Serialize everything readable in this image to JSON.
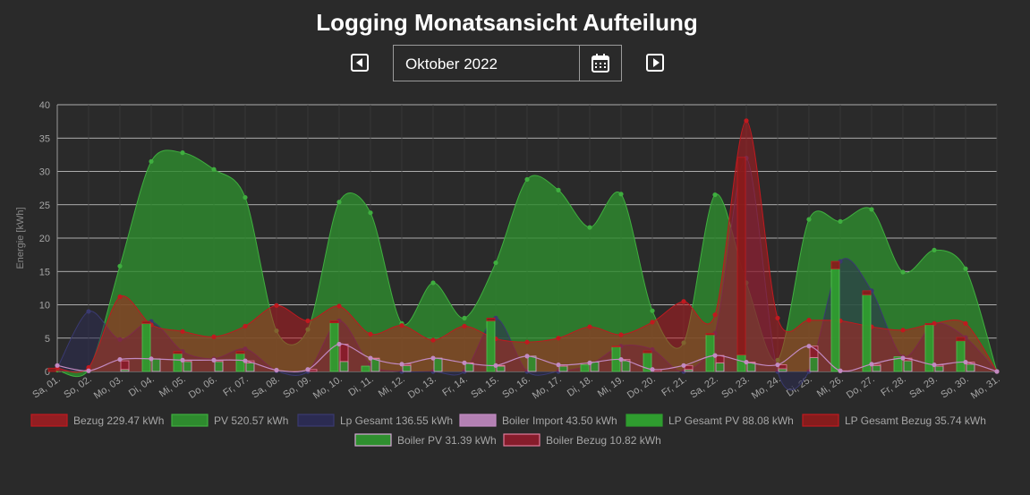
{
  "page": {
    "title": "Logging Monatsansicht Aufteilung"
  },
  "nav": {
    "month": "Oktober 2022",
    "prev_icon": "prev-arrow-icon",
    "next_icon": "next-arrow-icon",
    "calendar_icon": "calendar-icon"
  },
  "colors": {
    "background": "#2a2a2a",
    "bezug": "#c0191f",
    "pv": "#2e8b2e",
    "lp_gesamt": "#2b2b52",
    "boiler_import": "#c28ac2",
    "lp_gesamt_pv": "#2f9d2f",
    "lp_gesamt_bezug": "#8b1b1b",
    "boiler_pv": "#2f8f2f",
    "boiler_bezug": "#8b1b2b"
  },
  "chart_data": {
    "type": "line",
    "title": "",
    "ylabel": "Energie [kWh]",
    "xlabel": "",
    "ylim": [
      0,
      40
    ],
    "yticks": [
      0,
      5,
      10,
      15,
      20,
      25,
      30,
      35,
      40
    ],
    "categories": [
      "Sa, 01.",
      "So, 02.",
      "Mo, 03.",
      "Di, 04.",
      "Mi, 05.",
      "Do, 06.",
      "Fr, 07.",
      "Sa, 08.",
      "So, 09.",
      "Mo, 10.",
      "Di, 11.",
      "Mi, 12.",
      "Do, 13.",
      "Fr, 14.",
      "Sa, 15.",
      "So, 16.",
      "Mo, 17.",
      "Di, 18.",
      "Mi, 19.",
      "Do, 20.",
      "Fr, 21.",
      "Sa, 22.",
      "So, 23.",
      "Mo, 24.",
      "Di, 25.",
      "Mi, 26.",
      "Do, 27.",
      "Fr, 28.",
      "Sa, 29.",
      "So, 30.",
      "Mo, 31."
    ],
    "series": [
      {
        "name": "Bezug 229.47 kWh",
        "key": "bezug",
        "kind": "area",
        "values": [
          0.5,
          0.6,
          11.2,
          7.0,
          6.0,
          5.2,
          6.8,
          9.9,
          7.6,
          9.8,
          5.6,
          6.9,
          4.7,
          6.8,
          4.9,
          4.4,
          5.0,
          6.7,
          5.5,
          7.4,
          10.5,
          8.5,
          37.6,
          8.0,
          7.7,
          7.6,
          6.7,
          6.2,
          7.2,
          7.2,
          0.0
        ]
      },
      {
        "name": "PV 520.57 kWh",
        "key": "pv",
        "kind": "area",
        "values": [
          0.2,
          0.3,
          15.8,
          31.5,
          32.8,
          30.3,
          26.1,
          6.1,
          6.3,
          25.4,
          23.8,
          7.2,
          13.3,
          8.0,
          16.3,
          28.8,
          27.2,
          21.6,
          26.6,
          9.1,
          4.3,
          26.5,
          13.3,
          1.7,
          22.8,
          22.5,
          24.3,
          14.9,
          18.2,
          15.4,
          0.0
        ]
      },
      {
        "name": "Lp Gesamt 136.55 kWh",
        "key": "lp_gesamt",
        "kind": "area",
        "values": [
          0.5,
          9.0,
          4.8,
          7.5,
          3.0,
          1.9,
          3.4,
          0.1,
          0.0,
          7.6,
          1.0,
          0.0,
          0.0,
          0.0,
          8.0,
          0.0,
          0.0,
          1.0,
          3.8,
          3.3,
          0.0,
          5.7,
          32.0,
          0.0,
          0.0,
          16.5,
          12.1,
          2.2,
          7.2,
          5.1,
          0.0
        ]
      },
      {
        "name": "Boiler Import 43.50 kWh",
        "key": "boiler_import",
        "kind": "line",
        "values": [
          0.9,
          0.1,
          1.8,
          1.9,
          1.7,
          1.7,
          1.6,
          0.2,
          0.3,
          4.1,
          2.0,
          1.1,
          2.0,
          1.3,
          0.9,
          2.3,
          1.0,
          1.3,
          1.8,
          0.3,
          0.9,
          2.4,
          1.4,
          1.0,
          3.8,
          0.1,
          1.1,
          2.0,
          1.0,
          1.4,
          0.0
        ]
      },
      {
        "name": "LP Gesamt PV 88.08 kWh",
        "key": "lp_gesamt_pv",
        "kind": "bar",
        "values": [
          0.0,
          0.0,
          0.0,
          7.2,
          2.7,
          0.0,
          2.7,
          0.0,
          0.0,
          7.3,
          0.8,
          0.0,
          0.0,
          0.0,
          7.6,
          0.0,
          0.0,
          1.0,
          3.7,
          2.8,
          0.0,
          5.5,
          2.5,
          0.0,
          0.0,
          15.4,
          11.5,
          2.2,
          7.0,
          4.6,
          0.0
        ]
      },
      {
        "name": "LP Gesamt Bezug 35.74 kWh",
        "key": "lp_gesamt_bezug",
        "kind": "bar",
        "values": [
          0.5,
          0.0,
          0.0,
          0.3,
          0.3,
          0.0,
          0.3,
          0.0,
          0.0,
          0.3,
          0.0,
          0.0,
          0.0,
          0.0,
          0.4,
          0.0,
          0.0,
          0.0,
          0.1,
          0.3,
          0.0,
          0.2,
          29.6,
          0.0,
          0.0,
          1.1,
          0.6,
          0.0,
          0.2,
          0.5,
          0.0
        ]
      },
      {
        "name": "Boiler PV 31.39 kWh",
        "key": "boiler_pv",
        "kind": "bar",
        "values": [
          0.0,
          0.0,
          0.3,
          1.9,
          1.5,
          1.5,
          1.3,
          0.0,
          0.0,
          1.5,
          1.9,
          0.9,
          2.0,
          1.2,
          0.8,
          2.3,
          0.8,
          1.4,
          1.6,
          0.0,
          0.3,
          1.3,
          1.3,
          0.4,
          2.1,
          0.0,
          0.9,
          1.6,
          0.8,
          1.1,
          0.0
        ]
      },
      {
        "name": "Boiler Bezug 10.82 kWh",
        "key": "boiler_bezug",
        "kind": "bar",
        "values": [
          0.0,
          0.0,
          1.3,
          0.0,
          0.2,
          0.2,
          0.3,
          0.0,
          0.3,
          2.6,
          0.1,
          0.2,
          0.0,
          0.1,
          0.1,
          0.0,
          0.2,
          0.0,
          0.2,
          0.3,
          0.6,
          1.1,
          0.1,
          0.6,
          1.7,
          0.1,
          0.2,
          0.4,
          0.2,
          0.3,
          0.0
        ]
      }
    ],
    "legend_position": "bottom"
  }
}
